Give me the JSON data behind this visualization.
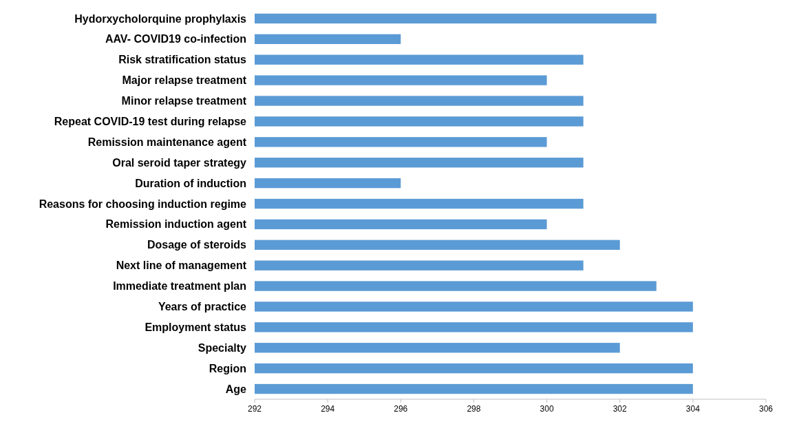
{
  "chart_data": {
    "type": "bar",
    "orientation": "horizontal",
    "categories": [
      "Hydorxycholorquine prophylaxis",
      "AAV- COVID19 co-infection",
      "Risk stratification status",
      "Major relapse treatment",
      "Minor relapse treatment",
      "Repeat COVID-19 test during relapse",
      "Remission maintenance agent",
      "Oral seroid taper strategy",
      "Duration of induction",
      "Reasons for choosing induction regime",
      "Remission induction agent",
      "Dosage of steroids",
      "Next line of management",
      "Immediate treatment plan",
      "Years of practice",
      "Employment status",
      "Specialty",
      "Region",
      "Age"
    ],
    "values": [
      303,
      296,
      301,
      300,
      301,
      301,
      300,
      301,
      296,
      301,
      300,
      302,
      301,
      303,
      304,
      304,
      302,
      304,
      304
    ],
    "color": "#5b9bd5",
    "xlim": [
      292,
      306
    ],
    "xticks": [
      292,
      294,
      296,
      298,
      300,
      302,
      304,
      306
    ],
    "grid": false
  }
}
